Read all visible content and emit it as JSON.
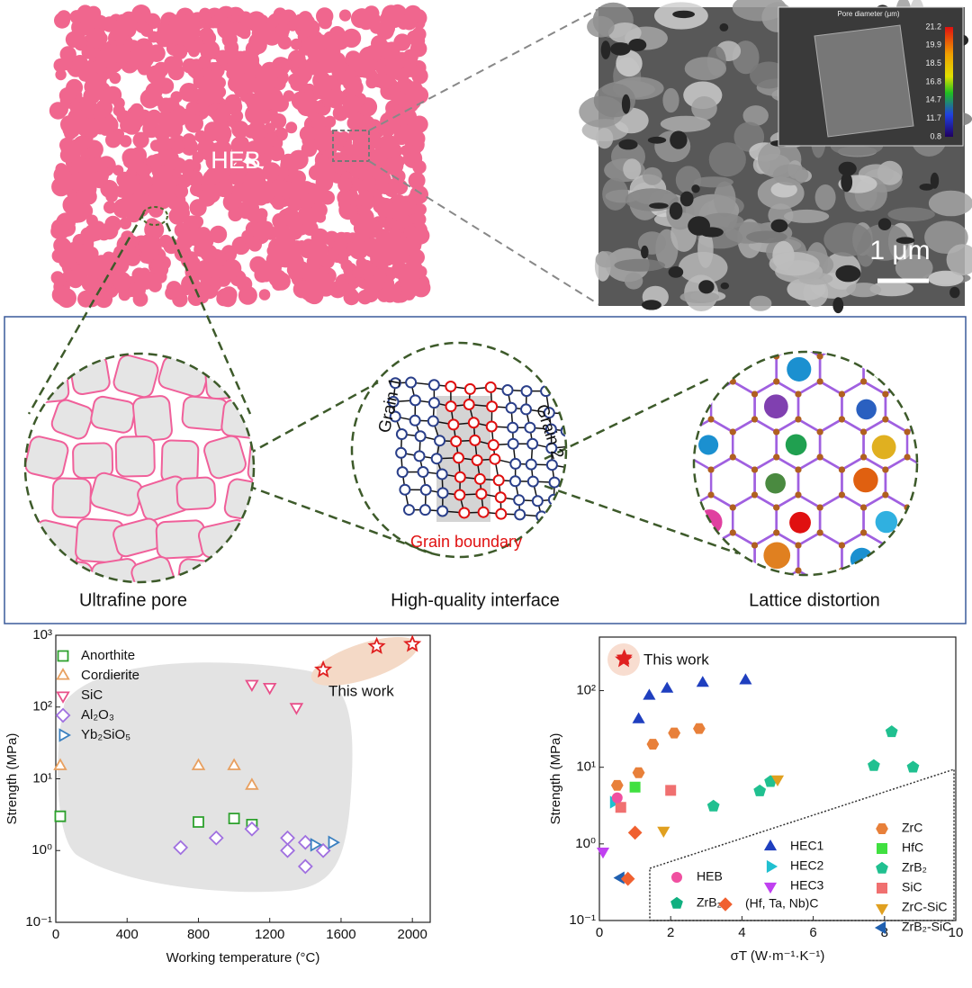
{
  "top_panel": {
    "label": "HEB",
    "scale_bar": "1 μm",
    "colorbar": {
      "title": "Pore diameter (μm)",
      "ticks": [
        21.2,
        19.9,
        18.5,
        16.8,
        14.7,
        11.7,
        0.8
      ]
    }
  },
  "middle_panel": {
    "insets": [
      {
        "caption": "Ultrafine pore"
      },
      {
        "caption": "High-quality interface",
        "labels": [
          "Grain 1",
          "Grain 2",
          "Grain boundary"
        ]
      },
      {
        "caption": "Lattice distortion"
      }
    ]
  },
  "chart_data": [
    {
      "type": "scatter",
      "y_scale": "log",
      "x_label": "Working temperature (°C)",
      "y_label": "Strength (MPa)",
      "xlim": [
        0,
        2100
      ],
      "xticks": [
        0,
        400,
        800,
        1200,
        1600,
        2000
      ],
      "ylim": [
        0.1,
        1000
      ],
      "yticks": [
        {
          "value": 0.1,
          "label": "10⁻¹"
        },
        {
          "value": 1,
          "label": "10⁰"
        },
        {
          "value": 10,
          "label": "10¹"
        },
        {
          "value": 100,
          "label": "10²"
        },
        {
          "value": 1000,
          "label": "10³"
        }
      ],
      "series": [
        {
          "name": "Anorthite",
          "color": "#2ca02c",
          "marker": "square",
          "filled": false,
          "x": [
            25,
            800,
            1000,
            1100
          ],
          "values": [
            3,
            2.5,
            2.8,
            2.3
          ]
        },
        {
          "name": "Cordierite",
          "color": "#e8a060",
          "marker": "triangle-up",
          "filled": false,
          "x": [
            25,
            800,
            1000,
            1100
          ],
          "values": [
            15,
            15,
            15,
            8
          ]
        },
        {
          "name": "SiC",
          "color": "#e8508a",
          "marker": "triangle-down",
          "filled": false,
          "x": [
            1100,
            1200,
            1350
          ],
          "values": [
            210,
            190,
            100
          ]
        },
        {
          "name": "Al₂O₃",
          "color": "#a070e0",
          "marker": "diamond",
          "filled": false,
          "x": [
            700,
            900,
            1100,
            1300,
            1300,
            1400,
            1400,
            1500
          ],
          "values": [
            1.1,
            1.5,
            2,
            1.5,
            1.0,
            1.3,
            0.6,
            1.0
          ]
        },
        {
          "name": "Yb₂SiO₅",
          "color": "#3a80c0",
          "marker": "triangle-right",
          "filled": false,
          "x": [
            1450,
            1550
          ],
          "values": [
            1.2,
            1.3
          ]
        },
        {
          "name": "This work",
          "color": "#e02020",
          "marker": "star",
          "filled": false,
          "in_legend": false,
          "x": [
            1500,
            1800,
            2000
          ],
          "values": [
            330,
            700,
            750
          ]
        }
      ]
    },
    {
      "type": "scatter",
      "y_scale": "log",
      "x_label": "σT (W·m⁻¹·K⁻¹)",
      "y_label": "Strength (MPa)",
      "xlim": [
        0,
        10
      ],
      "xticks": [
        0,
        2,
        4,
        6,
        8,
        10
      ],
      "ylim": [
        0.1,
        500
      ],
      "yticks": [
        {
          "value": 0.1,
          "label": "10⁻¹"
        },
        {
          "value": 1,
          "label": "10⁰"
        },
        {
          "value": 10,
          "label": "10¹"
        },
        {
          "value": 100,
          "label": "10²"
        }
      ],
      "series": [
        {
          "name": "HEC1",
          "color": "#1f3fbf",
          "marker": "triangle-up",
          "filled": true,
          "x": [
            1.1,
            1.4,
            1.9,
            2.9,
            4.1
          ],
          "values": [
            42,
            85,
            105,
            125,
            135
          ]
        },
        {
          "name": "HEC2",
          "color": "#20c0d0",
          "marker": "triangle-right",
          "filled": true,
          "x": [
            0.4
          ],
          "values": [
            3.5
          ]
        },
        {
          "name": "HEC3",
          "color": "#c040f0",
          "marker": "triangle-down",
          "filled": true,
          "x": [
            0.1
          ],
          "values": [
            0.8
          ]
        },
        {
          "name": "ZrC",
          "color": "#e8803a",
          "marker": "hexagon",
          "filled": true,
          "x": [
            0.5,
            1.1,
            1.5,
            2.1,
            2.8
          ],
          "values": [
            5.8,
            8.5,
            20,
            28,
            32
          ]
        },
        {
          "name": "HfC",
          "color": "#40e040",
          "marker": "square",
          "filled": true,
          "x": [
            1.0
          ],
          "values": [
            5.5
          ]
        },
        {
          "name": "ZrB₂",
          "color": "#20c090",
          "marker": "pentagon",
          "filled": true,
          "x": [
            3.2,
            4.5,
            4.8,
            7.7,
            8.2,
            8.8
          ],
          "values": [
            3.1,
            4.9,
            6.5,
            10.5,
            29,
            10
          ]
        },
        {
          "name": "SiC",
          "color": "#f07070",
          "marker": "square",
          "filled": true,
          "x": [
            0.6,
            2.0
          ],
          "values": [
            3.0,
            5.0
          ]
        },
        {
          "name": "ZrC-SiC",
          "color": "#e0a020",
          "marker": "triangle-down",
          "filled": true,
          "x": [
            1.8,
            5.0
          ],
          "values": [
            1.5,
            7.0
          ]
        },
        {
          "name": "ZrB₂-SiC",
          "color": "#2060b0",
          "marker": "triangle-left",
          "filled": true,
          "x": [
            0.6
          ],
          "values": [
            0.36
          ]
        },
        {
          "name": "HEB",
          "color": "#f050a0",
          "marker": "circle",
          "filled": true,
          "x": [
            0.5
          ],
          "values": [
            4.0
          ]
        },
        {
          "name": "ZrB₂",
          "color": "#10b080",
          "marker": "pentagon",
          "filled": true,
          "x": [],
          "values": []
        },
        {
          "name": "(Hf, Ta, Nb)C",
          "color": "#f06030",
          "marker": "diamond",
          "filled": true,
          "x": [
            0.8,
            1.0
          ],
          "values": [
            0.35,
            1.4
          ]
        },
        {
          "name": "This work",
          "color": "#e02020",
          "marker": "star",
          "filled": true,
          "in_legend": false,
          "x": [
            0.7
          ],
          "values": [
            270
          ]
        }
      ]
    }
  ]
}
